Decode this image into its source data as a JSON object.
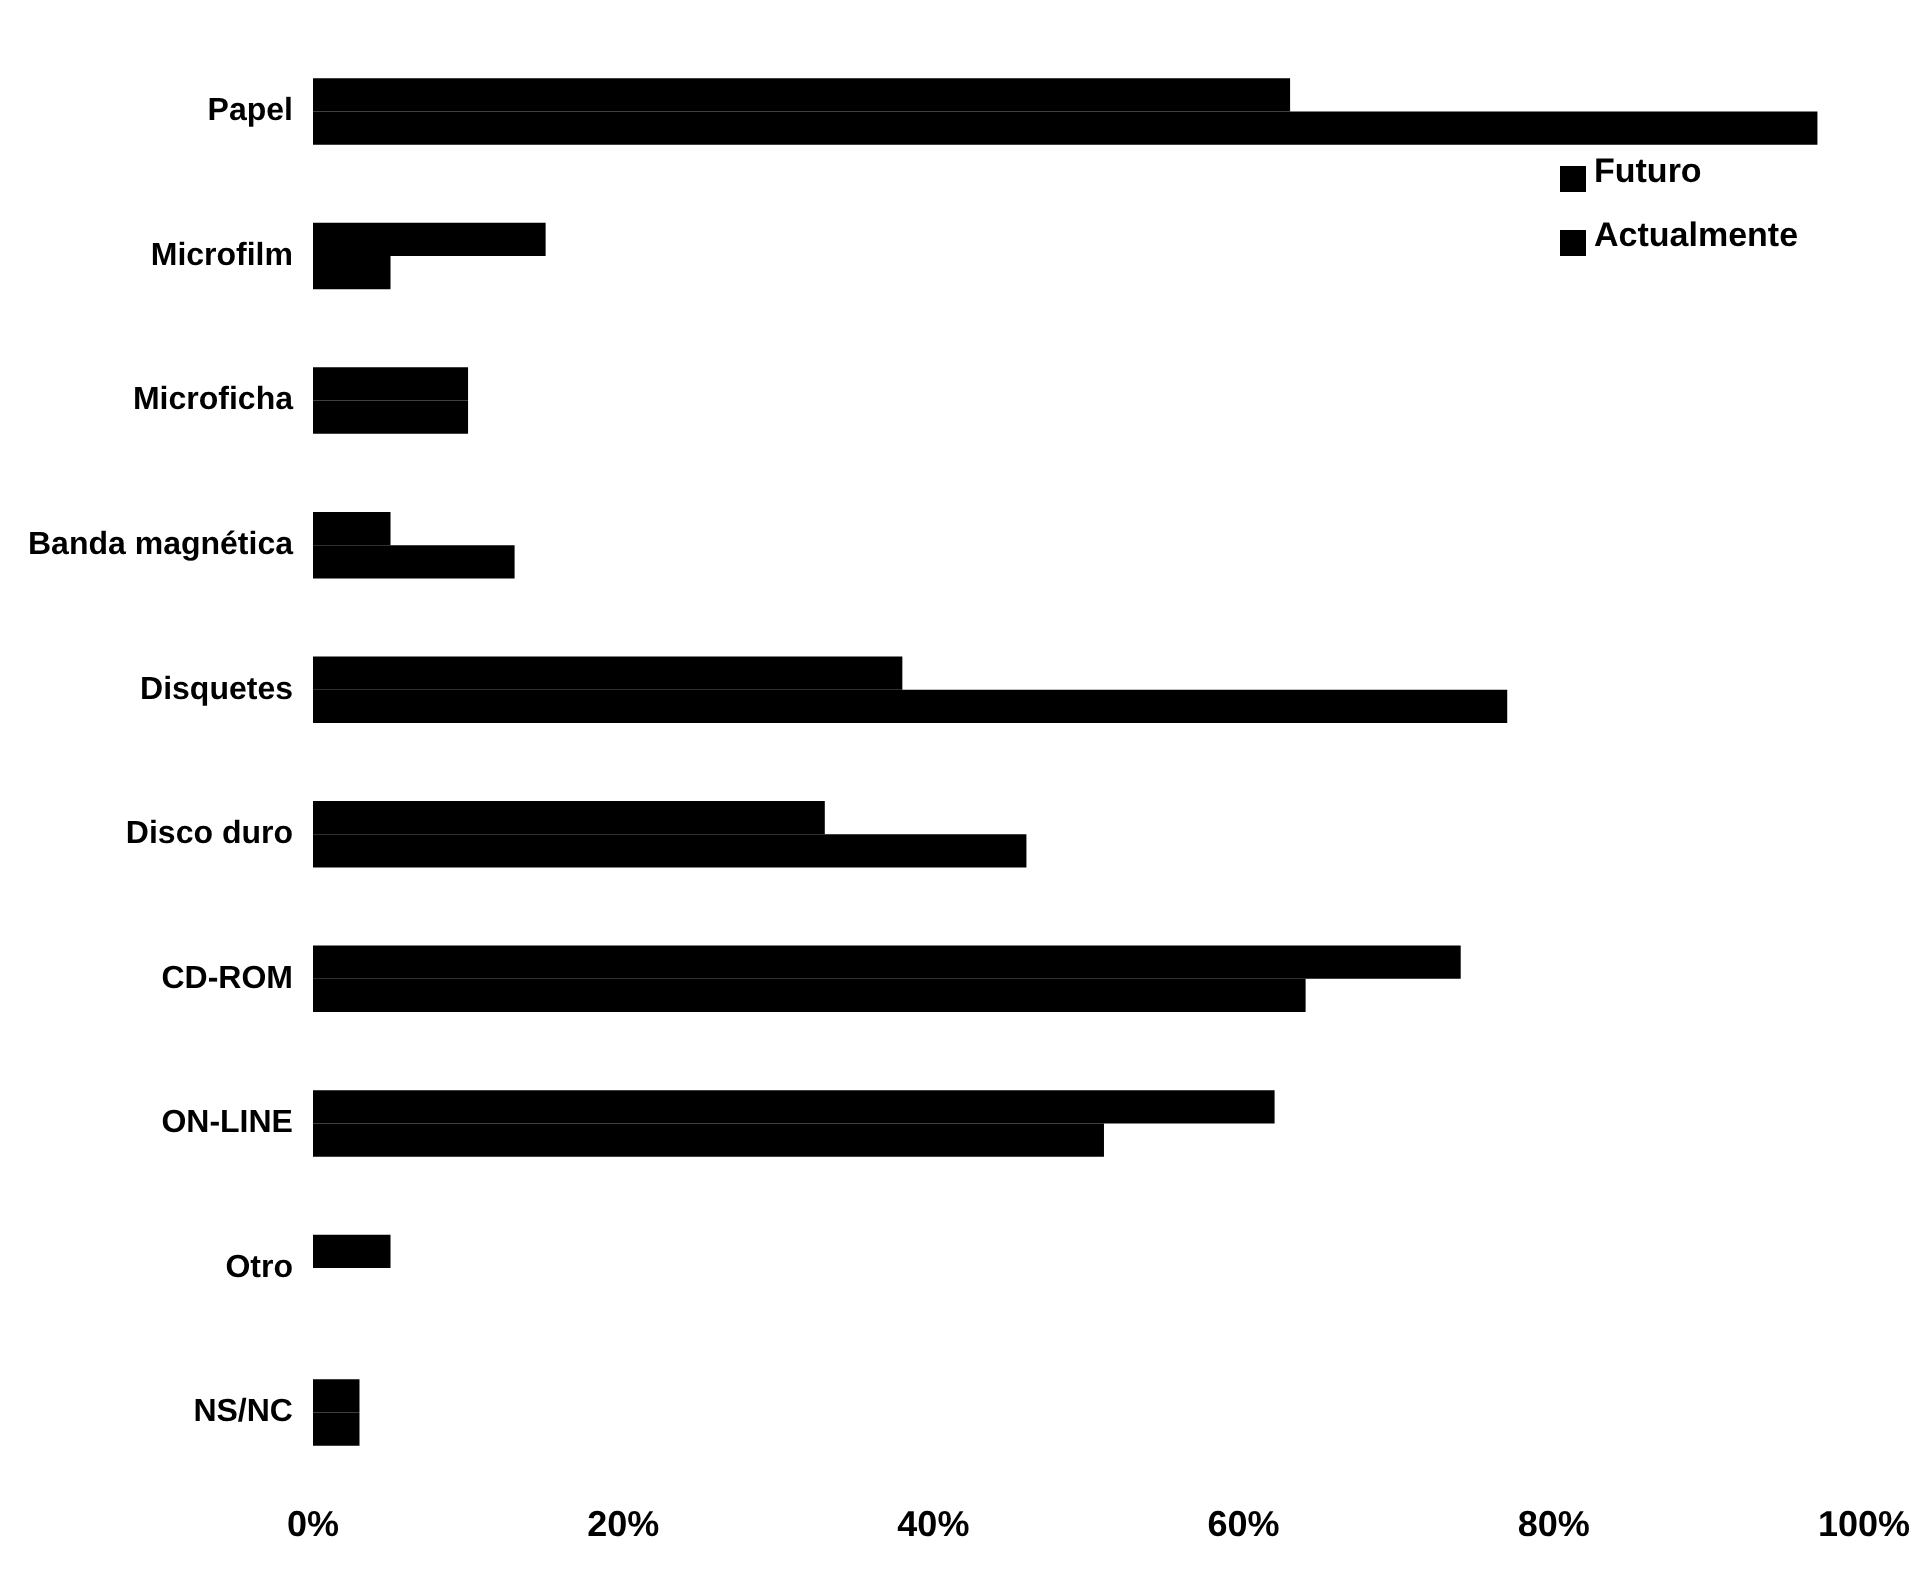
{
  "chart_data": {
    "type": "bar",
    "orientation": "horizontal",
    "categories": [
      "Papel",
      "Microfilm",
      "Microficha",
      "Banda magnética",
      "Disquetes",
      "Disco duro",
      "CD-ROM",
      "ON-LINE",
      "Otro",
      "NS/NC"
    ],
    "series": [
      {
        "name": "Futuro",
        "color": "#000000",
        "values": [
          63,
          15,
          10,
          5,
          38,
          33,
          74,
          62,
          5,
          3
        ]
      },
      {
        "name": "Actualmente",
        "color": "#000000",
        "values": [
          97,
          5,
          10,
          13,
          77,
          46,
          64,
          51,
          0,
          3
        ]
      }
    ],
    "xlim": [
      0,
      100
    ],
    "xticks": [
      {
        "value": 0,
        "label": "0%"
      },
      {
        "value": 20,
        "label": "20%"
      },
      {
        "value": 40,
        "label": "40%"
      },
      {
        "value": 60,
        "label": "60%"
      },
      {
        "value": 80,
        "label": "80%"
      },
      {
        "value": 100,
        "label": "100%"
      }
    ],
    "grid": false,
    "legend": "top right"
  }
}
